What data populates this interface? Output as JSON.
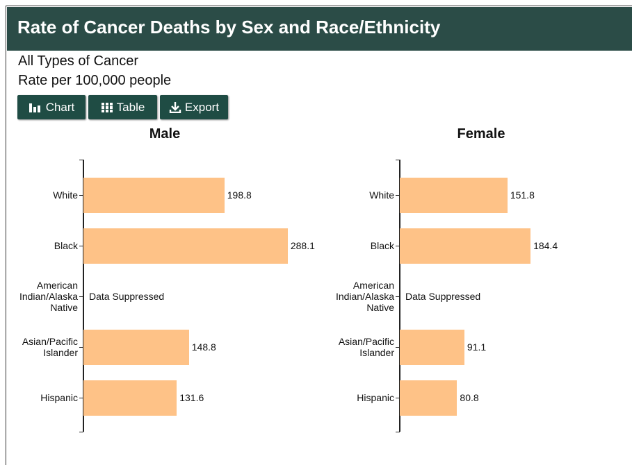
{
  "header": {
    "title": "Rate of Cancer Deaths by Sex and Race/Ethnicity"
  },
  "subtitle": [
    "All Types of Cancer",
    "Rate per 100,000 people"
  ],
  "buttons": [
    "Chart",
    "Table",
    "Export"
  ],
  "chart_data": [
    {
      "type": "bar",
      "orientation": "horizontal",
      "title": "Male",
      "categories": [
        "White",
        "Black",
        "American Indian/Alaska Native",
        "Asian/Pacific Islander",
        "Hispanic"
      ],
      "values": [
        198.8,
        288.1,
        null,
        148.8,
        131.6
      ],
      "value_labels": [
        null,
        null,
        "Data Suppressed",
        null,
        null
      ],
      "color": "#fec287",
      "xlim": [
        0,
        300
      ]
    },
    {
      "type": "bar",
      "orientation": "horizontal",
      "title": "Female",
      "categories": [
        "White",
        "Black",
        "American Indian/Alaska Native",
        "Asian/Pacific Islander",
        "Hispanic"
      ],
      "values": [
        151.8,
        184.4,
        null,
        91.1,
        80.8
      ],
      "value_labels": [
        null,
        null,
        "Data Suppressed",
        null,
        null
      ],
      "color": "#fec287",
      "xlim": [
        0,
        300
      ]
    }
  ]
}
